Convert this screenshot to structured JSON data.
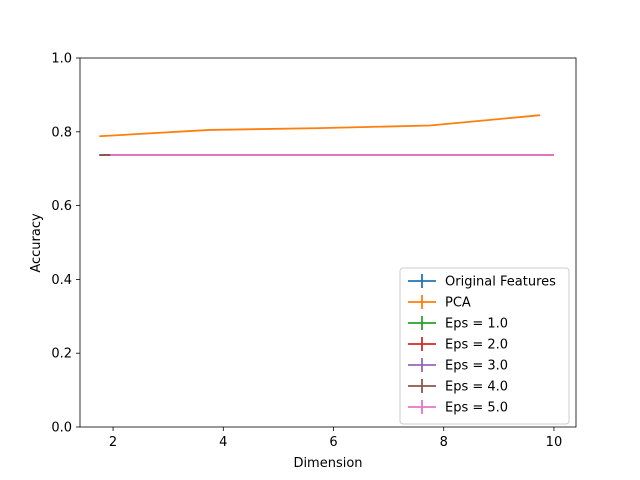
{
  "chart_data": {
    "type": "line",
    "title": "",
    "xlabel": "Dimension",
    "ylabel": "Accuracy",
    "xlim": [
      1.4,
      10.4
    ],
    "ylim": [
      0.0,
      1.0
    ],
    "xticks": [
      "2",
      "4",
      "6",
      "8",
      "10"
    ],
    "yticks": [
      "0.0",
      "0.2",
      "0.4",
      "0.6",
      "0.8",
      "1.0"
    ],
    "grid": false,
    "legend_position": "lower-right",
    "series": [
      {
        "name": "Original Features",
        "color": "#1f77b4",
        "x": [
          1.75,
          1.95
        ],
        "y": [
          0.737,
          0.737
        ]
      },
      {
        "name": "PCA",
        "color": "#ff7f0e",
        "x": [
          1.75,
          3.75,
          5.75,
          7.75,
          9.75
        ],
        "y": [
          0.788,
          0.805,
          0.81,
          0.817,
          0.845
        ]
      },
      {
        "name": "Eps = 1.0",
        "color": "#2ca02c",
        "x": [
          1.8,
          10.0
        ],
        "y": [
          0.737,
          0.737
        ]
      },
      {
        "name": "Eps = 2.0",
        "color": "#d62728",
        "x": [
          1.8,
          10.0
        ],
        "y": [
          0.737,
          0.737
        ]
      },
      {
        "name": "Eps = 3.0",
        "color": "#9467bd",
        "x": [
          1.8,
          10.0
        ],
        "y": [
          0.737,
          0.737
        ]
      },
      {
        "name": "Eps = 4.0",
        "color": "#8c564b",
        "x": [
          1.75,
          1.95
        ],
        "y": [
          0.737,
          0.737
        ]
      },
      {
        "name": "Eps = 5.0",
        "color": "#e377c2",
        "x": [
          1.95,
          10.0
        ],
        "y": [
          0.737,
          0.737
        ]
      }
    ]
  }
}
